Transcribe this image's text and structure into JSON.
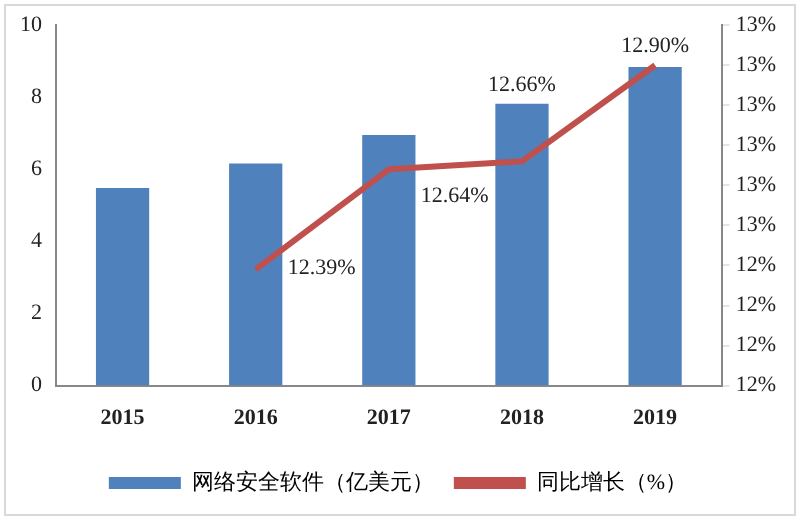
{
  "chart_data": {
    "type": "bar",
    "categories": [
      "2015",
      "2016",
      "2017",
      "2018",
      "2019"
    ],
    "series": [
      {
        "name": "网络安全软件（亿美元）",
        "color": "#4f81bd",
        "values": [
          5.48,
          6.16,
          6.95,
          7.82,
          8.84
        ]
      },
      {
        "name": "同比增长（%）",
        "type": "line",
        "axis": "y2",
        "color": "#c0504d",
        "values": [
          null,
          12.39,
          12.64,
          12.66,
          12.9
        ],
        "value_labels": [
          null,
          "12.39%",
          "12.64%",
          "12.66%",
          "12.90%"
        ],
        "marker": "none"
      }
    ],
    "ylim": [
      0,
      10
    ],
    "yticks": [
      0,
      2,
      4,
      6,
      8,
      10
    ],
    "y2lim": [
      12.1,
      13.0
    ],
    "y2ticks": [
      {
        "value": 12.1,
        "label": "12%"
      },
      {
        "value": 12.2,
        "label": "12%"
      },
      {
        "value": 12.3,
        "label": "12%"
      },
      {
        "value": 12.4,
        "label": "12%"
      },
      {
        "value": 12.5,
        "label": "13%"
      },
      {
        "value": 12.6,
        "label": "13%"
      },
      {
        "value": 12.7,
        "label": "13%"
      },
      {
        "value": 12.8,
        "label": "13%"
      },
      {
        "value": 12.9,
        "label": "13%"
      },
      {
        "value": 13.0,
        "label": "13%"
      }
    ],
    "grid": false,
    "legend": "bottom"
  }
}
